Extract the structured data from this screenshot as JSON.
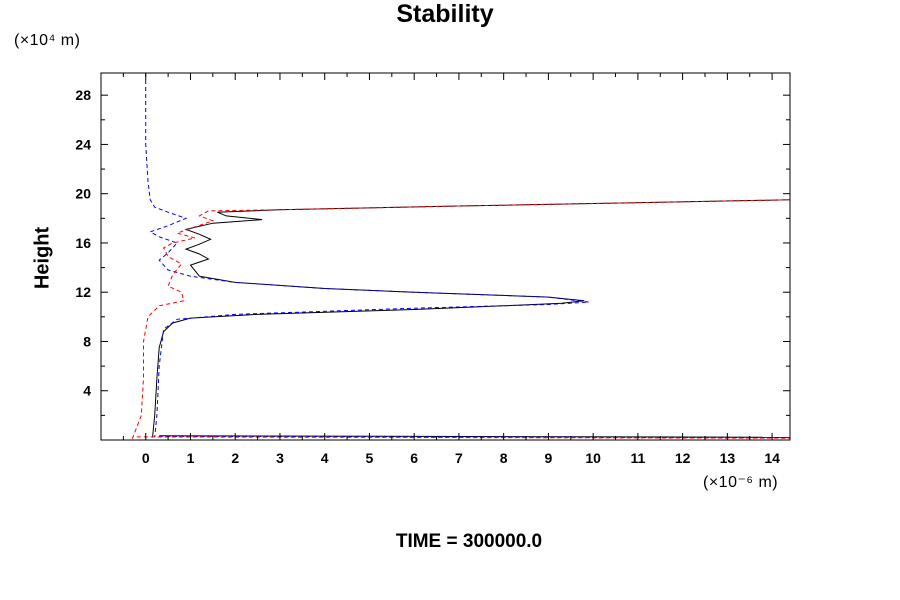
{
  "title": "Stability",
  "y_unit": "(×10⁴ m)",
  "x_unit": "(×10⁻⁶ m)",
  "footer": "TIME = 300000.0",
  "chart_data": {
    "type": "line",
    "title": "Stability",
    "ylabel": "Height",
    "xlabel": "",
    "xlim": [
      -1,
      14.4
    ],
    "ylim": [
      0,
      29.8
    ],
    "xticks": [
      0,
      1,
      2,
      3,
      4,
      5,
      6,
      7,
      8,
      9,
      10,
      11,
      12,
      13,
      14
    ],
    "yticks": [
      4,
      8,
      12,
      16,
      20,
      24,
      28
    ],
    "grid": false,
    "series": [
      {
        "color": "#000000",
        "dash": "solid",
        "points": [
          [
            0.15,
            0.2
          ],
          [
            0.2,
            2
          ],
          [
            0.25,
            5
          ],
          [
            0.3,
            7.5
          ],
          [
            0.4,
            8.8
          ],
          [
            0.6,
            9.5
          ],
          [
            1.0,
            9.9
          ],
          [
            2.5,
            10.2
          ],
          [
            6,
            10.6
          ],
          [
            8,
            10.9
          ],
          [
            9.3,
            11.1
          ],
          [
            9.8,
            11.3
          ],
          [
            9,
            11.6
          ],
          [
            6,
            12
          ],
          [
            4,
            12.3
          ],
          [
            2,
            12.8
          ],
          [
            1.2,
            13.3
          ],
          [
            1.0,
            14.2
          ],
          [
            1.4,
            14.7
          ],
          [
            1.2,
            15.1
          ],
          [
            0.9,
            15.5
          ],
          [
            1.2,
            15.9
          ],
          [
            1.45,
            16.3
          ],
          [
            1.2,
            16.7
          ],
          [
            0.9,
            17.1
          ],
          [
            1.5,
            17.6
          ],
          [
            2.6,
            17.9
          ],
          [
            1.8,
            18.2
          ],
          [
            1.6,
            18.5
          ],
          [
            3,
            18.7
          ],
          [
            7,
            19.0
          ],
          [
            10,
            19.2
          ],
          [
            14.4,
            19.5
          ]
        ]
      },
      {
        "color": "#0000ff",
        "dash": "dashed",
        "points": [
          [
            0,
            29.8
          ],
          [
            0,
            27
          ],
          [
            0,
            24
          ],
          [
            0.05,
            21
          ],
          [
            0.1,
            19.5
          ],
          [
            0.2,
            18.9
          ],
          [
            0.5,
            18.5
          ],
          [
            0.9,
            18.0
          ],
          [
            0.5,
            17.4
          ],
          [
            0.1,
            16.9
          ],
          [
            0.3,
            16.5
          ],
          [
            0.7,
            16.0
          ],
          [
            0.5,
            15.2
          ],
          [
            0.3,
            14.6
          ],
          [
            0.5,
            13.8
          ],
          [
            1,
            13.3
          ],
          [
            2,
            12.8
          ],
          [
            4,
            12.3
          ],
          [
            6,
            12.0
          ],
          [
            9,
            11.6
          ],
          [
            9.9,
            11.2
          ],
          [
            9,
            11.0
          ],
          [
            6,
            10.7
          ],
          [
            2,
            10.2
          ],
          [
            0.7,
            9.8
          ],
          [
            0.4,
            9.0
          ],
          [
            0.3,
            6
          ],
          [
            0.25,
            2
          ],
          [
            0.2,
            0.2
          ]
        ]
      },
      {
        "color": "#ff0000",
        "dash": "dashed",
        "points": [
          [
            -0.3,
            0.1
          ],
          [
            -0.1,
            2
          ],
          [
            -0.05,
            5
          ],
          [
            -0.05,
            8
          ],
          [
            0.05,
            10
          ],
          [
            0.3,
            10.9
          ],
          [
            0.85,
            11.3
          ],
          [
            0.8,
            12
          ],
          [
            0.5,
            12.5
          ],
          [
            0.6,
            13.4
          ],
          [
            0.8,
            14.3
          ],
          [
            0.5,
            14.9
          ],
          [
            0.4,
            15.6
          ],
          [
            0.6,
            16.0
          ],
          [
            1.1,
            16.4
          ],
          [
            0.7,
            16.8
          ],
          [
            1.1,
            17.3
          ],
          [
            1.5,
            17.8
          ],
          [
            1.2,
            18.2
          ],
          [
            1.4,
            18.6
          ],
          [
            3,
            18.7
          ],
          [
            7,
            19.0
          ],
          [
            10,
            19.2
          ],
          [
            14.4,
            19.5
          ]
        ]
      },
      {
        "color": "#000000",
        "dash": "solid",
        "points": [
          [
            0.3,
            0.35
          ],
          [
            14.4,
            0.22
          ]
        ]
      },
      {
        "color": "#0000ff",
        "dash": "dashed",
        "points": [
          [
            0.3,
            0.3
          ],
          [
            14.4,
            0.18
          ]
        ]
      },
      {
        "color": "#ff0000",
        "dash": "dashed",
        "points": [
          [
            -0.2,
            0.25
          ],
          [
            14.4,
            0.15
          ]
        ]
      }
    ]
  }
}
